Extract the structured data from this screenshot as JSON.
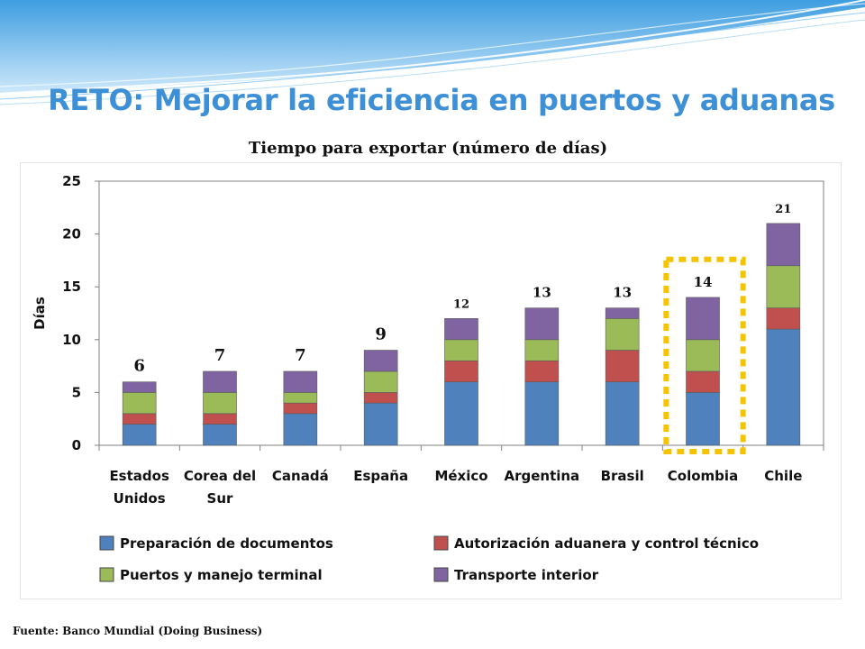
{
  "slide": {
    "title": "RETO: Mejorar la eficiencia en puertos y aduanas",
    "source": "Fuente: Banco Mundial (Doing Business)"
  },
  "colors": {
    "title": "#3d8fd6",
    "wave": "#5aaee8",
    "highlight_box": "#f5c400"
  },
  "chart_data": {
    "type": "bar",
    "stacked": true,
    "title": "Tiempo para exportar (número de días)",
    "ylabel": "Días",
    "xlabel": "",
    "ylim": [
      0,
      25
    ],
    "yticks": [
      0,
      5,
      10,
      15,
      20,
      25
    ],
    "categories": [
      [
        "Estados",
        "Unidos"
      ],
      [
        "Corea del",
        "Sur"
      ],
      [
        "Canadá"
      ],
      [
        "España"
      ],
      [
        "México"
      ],
      [
        "Argentina"
      ],
      [
        "Brasil"
      ],
      [
        "Colombia"
      ],
      [
        "Chile"
      ]
    ],
    "series": [
      {
        "name": "Preparación de documentos",
        "color": "#4f81bd",
        "values": [
          2,
          2,
          3,
          4,
          6,
          6,
          6,
          5,
          11
        ]
      },
      {
        "name": "Autorización aduanera y control técnico",
        "color": "#c0504d",
        "values": [
          1,
          1,
          1,
          1,
          2,
          2,
          3,
          2,
          2
        ]
      },
      {
        "name": "Puertos y manejo terminal",
        "color": "#9bbb59",
        "values": [
          2,
          2,
          1,
          2,
          2,
          2,
          3,
          3,
          4
        ]
      },
      {
        "name": "Transporte interior",
        "color": "#8064a2",
        "values": [
          1,
          2,
          2,
          2,
          2,
          3,
          1,
          4,
          4
        ]
      }
    ],
    "totals": [
      "6",
      "7",
      "7",
      "9",
      "12",
      "13",
      "13",
      "14",
      "21"
    ],
    "total_label_sizes": [
      "large",
      "large",
      "large",
      "large",
      "small",
      "medium",
      "medium",
      "medium",
      "small"
    ],
    "highlighted_category_index": 7,
    "grid": false,
    "legend_position": "bottom"
  }
}
